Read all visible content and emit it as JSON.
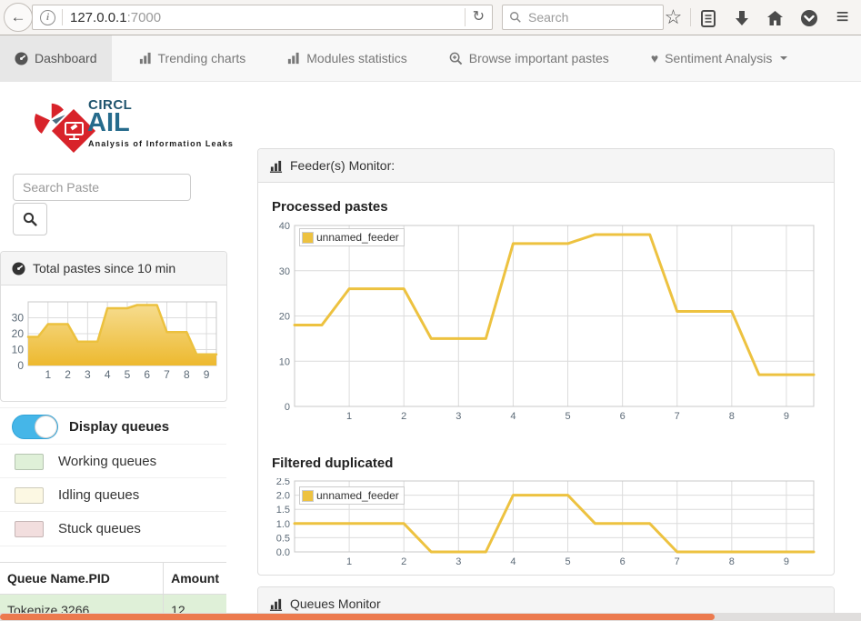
{
  "browser": {
    "url_host": "127.0.0.1",
    "url_port": ":7000",
    "search_placeholder": "Search"
  },
  "glyphs": {
    "back": "←",
    "reload": "↻",
    "star": "☆",
    "menu": "≡",
    "heart": "♥",
    "info": "i"
  },
  "nav": {
    "items": [
      {
        "label": "Dashboard",
        "icon": "gauge-icon",
        "active": true
      },
      {
        "label": "Trending charts",
        "icon": "bar-chart-icon",
        "active": false
      },
      {
        "label": "Modules statistics",
        "icon": "bar-chart-icon",
        "active": false
      },
      {
        "label": "Browse important pastes",
        "icon": "search-plus-icon",
        "active": false
      },
      {
        "label": "Sentiment Analysis",
        "icon": "heart-icon",
        "active": false,
        "has_caret": true
      }
    ]
  },
  "sidebar": {
    "logo": {
      "brand_top": "CIRCL",
      "brand_main": "AIL",
      "tagline": "Analysis of Information Leaks"
    },
    "search_placeholder": "Search Paste",
    "total_panel_title": "Total pastes since 10 min",
    "display_queues_label": "Display queues",
    "queue_legend": [
      {
        "label": "Working queues",
        "color": "#dff0d8"
      },
      {
        "label": "Idling queues",
        "color": "#fcf8e3"
      },
      {
        "label": "Stuck queues",
        "color": "#f2dede"
      }
    ],
    "queue_table": {
      "headers": [
        "Queue Name.PID",
        "Amount"
      ],
      "rows": [
        {
          "name": "Tokenize 3266",
          "amount": "12",
          "status": "working"
        }
      ]
    }
  },
  "main": {
    "feeder_panel_title": "Feeder(s) Monitor:",
    "queues_panel_title": "Queues Monitor"
  },
  "chart_data": [
    {
      "id": "sidebar",
      "type": "area",
      "title": "Total pastes since 10 min",
      "series": [
        {
          "name": "unnamed_feeder",
          "points": [
            [
              0,
              18
            ],
            [
              0.5,
              18
            ],
            [
              1,
              26
            ],
            [
              2,
              26
            ],
            [
              2.5,
              15
            ],
            [
              3.5,
              15
            ],
            [
              4,
              36
            ],
            [
              5,
              36
            ],
            [
              5.5,
              38
            ],
            [
              6.5,
              38
            ],
            [
              7,
              21
            ],
            [
              8,
              21
            ],
            [
              8.5,
              7
            ],
            [
              9.5,
              7
            ]
          ]
        }
      ],
      "xlim": [
        0,
        9.5
      ],
      "ylim": [
        0,
        40
      ],
      "xticks": [
        1,
        2,
        3,
        4,
        5,
        6,
        7,
        8,
        9
      ],
      "xtick_labels": [
        "1",
        "2",
        "3",
        "4",
        "5",
        "6",
        "7",
        "8",
        "9"
      ],
      "yticks": [
        0,
        10,
        20,
        30
      ],
      "ytick_labels": [
        "0",
        "10",
        "20",
        "30"
      ],
      "color": "#ecc13e",
      "fill": true,
      "grid": true,
      "legend": false
    },
    {
      "id": "processed",
      "type": "line",
      "title": "Processed pastes",
      "series": [
        {
          "name": "unnamed_feeder",
          "points": [
            [
              0,
              18
            ],
            [
              0.5,
              18
            ],
            [
              1,
              26
            ],
            [
              2,
              26
            ],
            [
              2.5,
              15
            ],
            [
              3.5,
              15
            ],
            [
              4,
              36
            ],
            [
              5,
              36
            ],
            [
              5.5,
              38
            ],
            [
              6.5,
              38
            ],
            [
              7,
              21
            ],
            [
              8,
              21
            ],
            [
              8.5,
              7
            ],
            [
              9.5,
              7
            ]
          ]
        }
      ],
      "xlim": [
        0,
        9.5
      ],
      "ylim": [
        0,
        40
      ],
      "xticks": [
        1,
        2,
        3,
        4,
        5,
        6,
        7,
        8,
        9
      ],
      "xtick_labels": [
        "1",
        "2",
        "3",
        "4",
        "5",
        "6",
        "7",
        "8",
        "9"
      ],
      "yticks": [
        0,
        10,
        20,
        30,
        40
      ],
      "ytick_labels": [
        "0",
        "10",
        "20",
        "30",
        "40"
      ],
      "color": "#edc240",
      "fill": false,
      "grid": true,
      "legend": true,
      "legend_position": "top-left"
    },
    {
      "id": "filtered",
      "type": "line",
      "title": "Filtered duplicated",
      "series": [
        {
          "name": "unnamed_feeder",
          "points": [
            [
              0,
              1
            ],
            [
              2,
              1
            ],
            [
              2.5,
              0
            ],
            [
              3.5,
              0
            ],
            [
              4,
              2
            ],
            [
              5,
              2
            ],
            [
              5.5,
              1
            ],
            [
              6.5,
              1
            ],
            [
              7,
              0
            ],
            [
              9.5,
              0
            ]
          ]
        }
      ],
      "xlim": [
        0,
        9.5
      ],
      "ylim": [
        0,
        2.5
      ],
      "xticks": [
        1,
        2,
        3,
        4,
        5,
        6,
        7,
        8,
        9
      ],
      "xtick_labels": [
        "1",
        "2",
        "3",
        "4",
        "5",
        "6",
        "7",
        "8",
        "9"
      ],
      "yticks": [
        0,
        0.5,
        1,
        1.5,
        2,
        2.5
      ],
      "ytick_labels": [
        "0.0",
        "0.5",
        "1.0",
        "1.5",
        "2.0",
        "2.5"
      ],
      "color": "#edc240",
      "fill": false,
      "grid": true,
      "legend": true,
      "legend_position": "top-left"
    }
  ]
}
